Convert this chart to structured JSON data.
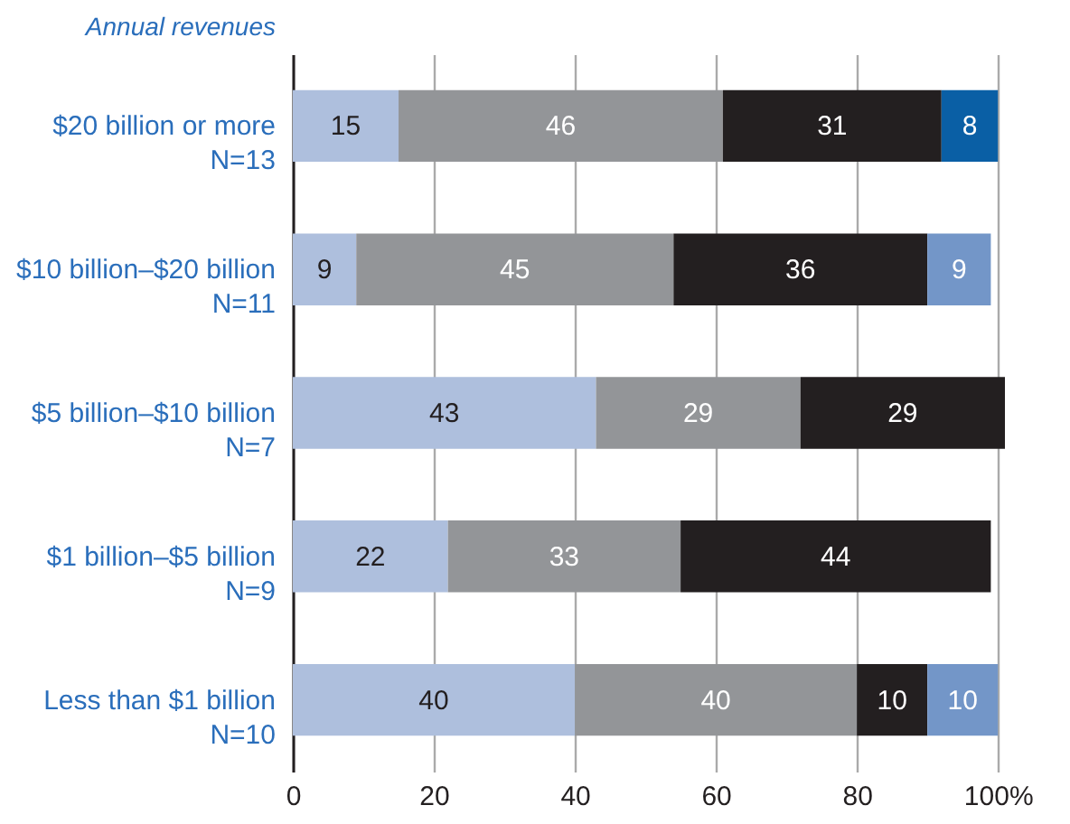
{
  "chart_data": {
    "type": "bar",
    "orientation": "horizontal",
    "stacked": true,
    "ylabel": "Annual revenues",
    "categories": [
      "$20 billion or more\nN=13",
      "$10 billion–$20 billion\nN=11",
      "$5 billion–$10 billion\nN=7",
      "$1 billion–$5 billion\nN=9",
      "Less than $1 billion\nN=10"
    ],
    "series": [
      {
        "color": "#aebfdd",
        "values": [
          15,
          9,
          43,
          22,
          40
        ]
      },
      {
        "color": "#939598",
        "values": [
          46,
          45,
          29,
          33,
          40
        ]
      },
      {
        "color": "#231f20",
        "values": [
          31,
          36,
          29,
          44,
          10
        ]
      },
      {
        "color": "#0a5fa5",
        "values": [
          8,
          null,
          null,
          null,
          null
        ]
      },
      {
        "color": "#7396c8",
        "values": [
          null,
          9,
          null,
          null,
          10
        ]
      }
    ],
    "xlim": [
      0,
      101
    ],
    "xticks": [
      0,
      20,
      40,
      60,
      80,
      {
        "value": 100,
        "label": "100%"
      }
    ],
    "grid": "x",
    "data_labels": true
  }
}
